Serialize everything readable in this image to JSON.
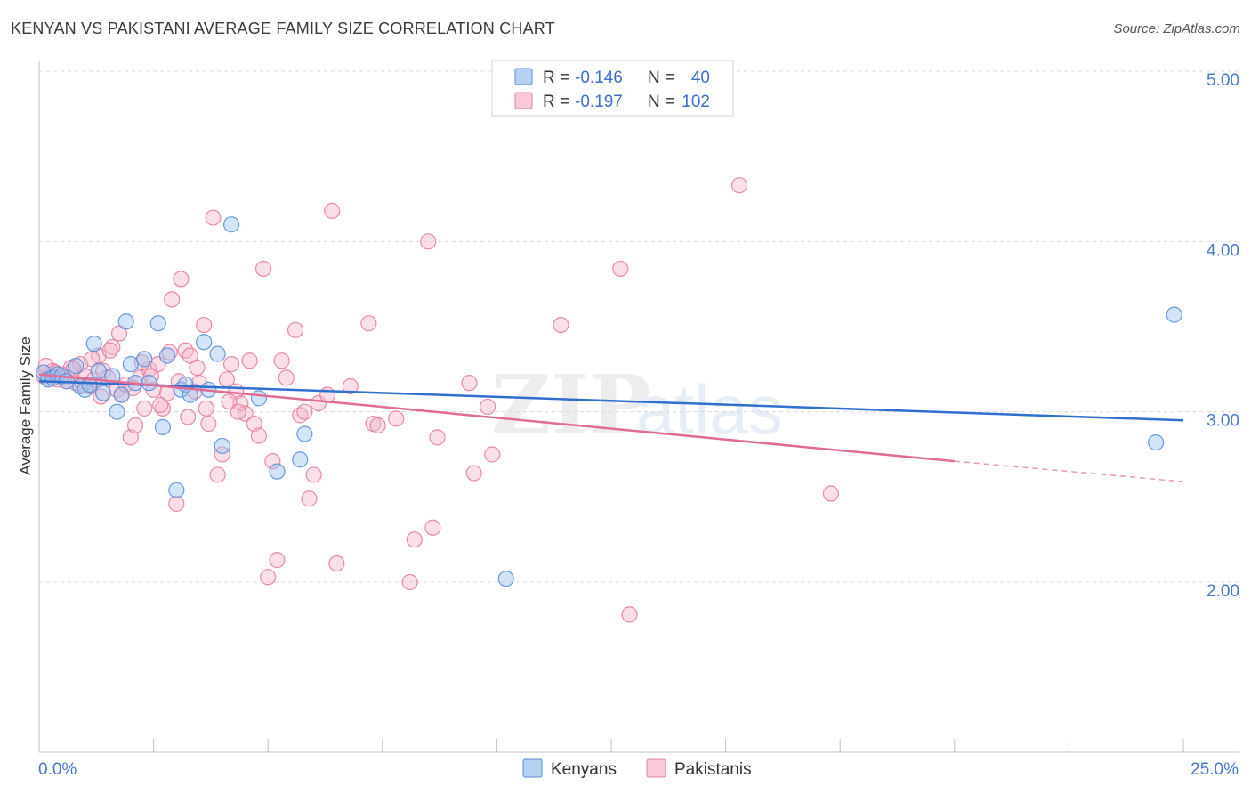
{
  "title": "KENYAN VS PAKISTANI AVERAGE FAMILY SIZE CORRELATION CHART",
  "source": "Source: ZipAtlas.com",
  "watermark": {
    "zip": "ZIP",
    "atlas": "atlas"
  },
  "colors": {
    "kenyan_fill": "#9ec0ef",
    "kenyan_stroke": "#5b8fd9",
    "kenyan_line": "#2f6fce",
    "pakistani_fill": "#f4b8cb",
    "pakistani_stroke": "#e47fa0",
    "pakistani_line": "#e06b93",
    "tick_text": "#4a78c8",
    "grid": "#d8d8d8"
  },
  "legend": {
    "kenyan": {
      "r_label": "R =",
      "r_value": "-0.146",
      "n_label": "N =",
      "n_value": "40"
    },
    "pakistani": {
      "r_label": "R =",
      "r_value": "-0.197",
      "n_label": "N =",
      "n_value": "102"
    }
  },
  "bottom_legend": {
    "kenyan": "Kenyans",
    "pakistani": "Pakistanis"
  },
  "chart_data": {
    "type": "scatter",
    "title": "KENYAN VS PAKISTANI AVERAGE FAMILY SIZE CORRELATION CHART",
    "xlabel": "",
    "ylabel": "Average Family Size",
    "xlim": [
      0,
      25
    ],
    "ylim": [
      1.0,
      5.1
    ],
    "x_tick_labels": {
      "left": "0.0%",
      "right": "25.0%"
    },
    "y_ticks": [
      {
        "value": 2.0,
        "label": "2.00"
      },
      {
        "value": 3.0,
        "label": "3.00"
      },
      {
        "value": 4.0,
        "label": "4.00"
      },
      {
        "value": 5.0,
        "label": "5.00"
      }
    ],
    "series": [
      {
        "name": "Kenyans",
        "trend": {
          "x0": 0,
          "y0": 3.18,
          "x1": 25,
          "y1": 2.95
        },
        "points": [
          [
            0.1,
            3.23
          ],
          [
            0.2,
            3.19
          ],
          [
            0.3,
            3.2
          ],
          [
            0.4,
            3.22
          ],
          [
            0.5,
            3.21
          ],
          [
            0.6,
            3.18
          ],
          [
            0.8,
            3.27
          ],
          [
            0.9,
            3.15
          ],
          [
            1.0,
            3.13
          ],
          [
            1.1,
            3.16
          ],
          [
            1.2,
            3.4
          ],
          [
            1.3,
            3.24
          ],
          [
            1.4,
            3.11
          ],
          [
            1.6,
            3.21
          ],
          [
            1.7,
            3.0
          ],
          [
            1.8,
            3.1
          ],
          [
            1.9,
            3.53
          ],
          [
            2.0,
            3.28
          ],
          [
            2.1,
            3.17
          ],
          [
            2.3,
            3.31
          ],
          [
            2.4,
            3.17
          ],
          [
            2.6,
            3.52
          ],
          [
            2.7,
            2.91
          ],
          [
            2.8,
            3.33
          ],
          [
            3.0,
            2.54
          ],
          [
            3.1,
            3.13
          ],
          [
            3.2,
            3.16
          ],
          [
            3.3,
            3.1
          ],
          [
            3.6,
            3.41
          ],
          [
            3.7,
            3.13
          ],
          [
            3.9,
            3.34
          ],
          [
            4.0,
            2.8
          ],
          [
            4.2,
            4.1
          ],
          [
            4.8,
            3.08
          ],
          [
            5.2,
            2.65
          ],
          [
            5.7,
            2.72
          ],
          [
            5.8,
            2.87
          ],
          [
            10.2,
            2.02
          ],
          [
            24.4,
            2.82
          ],
          [
            24.8,
            3.57
          ]
        ]
      },
      {
        "name": "Pakistanis",
        "trend": {
          "x0": 0,
          "y0": 3.22,
          "x1": 20,
          "y1": 2.71
        },
        "trend_dashed": {
          "x0": 20,
          "y0": 2.71,
          "x1": 25,
          "y1": 2.59
        },
        "points": [
          [
            0.1,
            3.21
          ],
          [
            0.2,
            3.2
          ],
          [
            0.3,
            3.24
          ],
          [
            0.4,
            3.19
          ],
          [
            0.5,
            3.22
          ],
          [
            0.6,
            3.18
          ],
          [
            0.7,
            3.26
          ],
          [
            0.8,
            3.17
          ],
          [
            0.9,
            3.28
          ],
          [
            1.0,
            3.21
          ],
          [
            1.1,
            3.15
          ],
          [
            1.2,
            3.19
          ],
          [
            1.3,
            3.33
          ],
          [
            1.4,
            3.24
          ],
          [
            1.5,
            3.2
          ],
          [
            1.6,
            3.38
          ],
          [
            1.7,
            3.13
          ],
          [
            1.8,
            3.1
          ],
          [
            1.9,
            3.16
          ],
          [
            2.0,
            2.85
          ],
          [
            2.1,
            2.92
          ],
          [
            2.2,
            3.2
          ],
          [
            2.3,
            3.02
          ],
          [
            2.4,
            3.25
          ],
          [
            2.5,
            3.13
          ],
          [
            2.6,
            3.28
          ],
          [
            2.7,
            3.02
          ],
          [
            2.8,
            3.11
          ],
          [
            2.9,
            3.66
          ],
          [
            3.0,
            2.46
          ],
          [
            3.1,
            3.78
          ],
          [
            3.2,
            3.36
          ],
          [
            3.3,
            3.33
          ],
          [
            3.4,
            3.12
          ],
          [
            3.5,
            3.17
          ],
          [
            3.6,
            3.51
          ],
          [
            3.7,
            2.93
          ],
          [
            3.8,
            4.14
          ],
          [
            3.9,
            2.63
          ],
          [
            4.0,
            2.75
          ],
          [
            4.1,
            3.19
          ],
          [
            4.2,
            3.28
          ],
          [
            4.3,
            3.12
          ],
          [
            4.4,
            3.05
          ],
          [
            4.5,
            2.99
          ],
          [
            4.6,
            3.3
          ],
          [
            4.7,
            2.93
          ],
          [
            4.8,
            2.86
          ],
          [
            4.9,
            3.84
          ],
          [
            5.0,
            2.03
          ],
          [
            5.1,
            2.71
          ],
          [
            5.2,
            2.13
          ],
          [
            5.3,
            3.3
          ],
          [
            5.4,
            3.2
          ],
          [
            5.6,
            3.48
          ],
          [
            5.7,
            2.98
          ],
          [
            5.8,
            3.0
          ],
          [
            5.9,
            2.49
          ],
          [
            6.0,
            2.63
          ],
          [
            6.1,
            3.05
          ],
          [
            6.3,
            3.1
          ],
          [
            6.4,
            4.18
          ],
          [
            6.5,
            2.11
          ],
          [
            6.8,
            3.15
          ],
          [
            7.2,
            3.52
          ],
          [
            7.3,
            2.93
          ],
          [
            7.4,
            2.92
          ],
          [
            7.8,
            2.96
          ],
          [
            8.1,
            2.0
          ],
          [
            8.2,
            2.25
          ],
          [
            8.5,
            4.0
          ],
          [
            8.6,
            2.32
          ],
          [
            8.7,
            2.85
          ],
          [
            9.4,
            3.17
          ],
          [
            9.5,
            2.64
          ],
          [
            9.8,
            3.03
          ],
          [
            9.9,
            2.75
          ],
          [
            11.4,
            3.51
          ],
          [
            12.7,
            3.84
          ],
          [
            12.9,
            1.81
          ],
          [
            15.3,
            4.33
          ],
          [
            17.3,
            2.52
          ],
          [
            0.15,
            3.27
          ],
          [
            0.35,
            3.23
          ],
          [
            0.55,
            3.2
          ],
          [
            0.75,
            3.25
          ],
          [
            0.95,
            3.16
          ],
          [
            1.15,
            3.31
          ],
          [
            1.35,
            3.09
          ],
          [
            1.55,
            3.36
          ],
          [
            1.75,
            3.46
          ],
          [
            2.05,
            3.14
          ],
          [
            2.25,
            3.29
          ],
          [
            2.45,
            3.21
          ],
          [
            2.65,
            3.04
          ],
          [
            2.85,
            3.35
          ],
          [
            3.05,
            3.18
          ],
          [
            3.25,
            2.97
          ],
          [
            3.45,
            3.26
          ],
          [
            3.65,
            3.02
          ],
          [
            4.15,
            3.06
          ],
          [
            4.35,
            3.0
          ]
        ]
      }
    ]
  }
}
